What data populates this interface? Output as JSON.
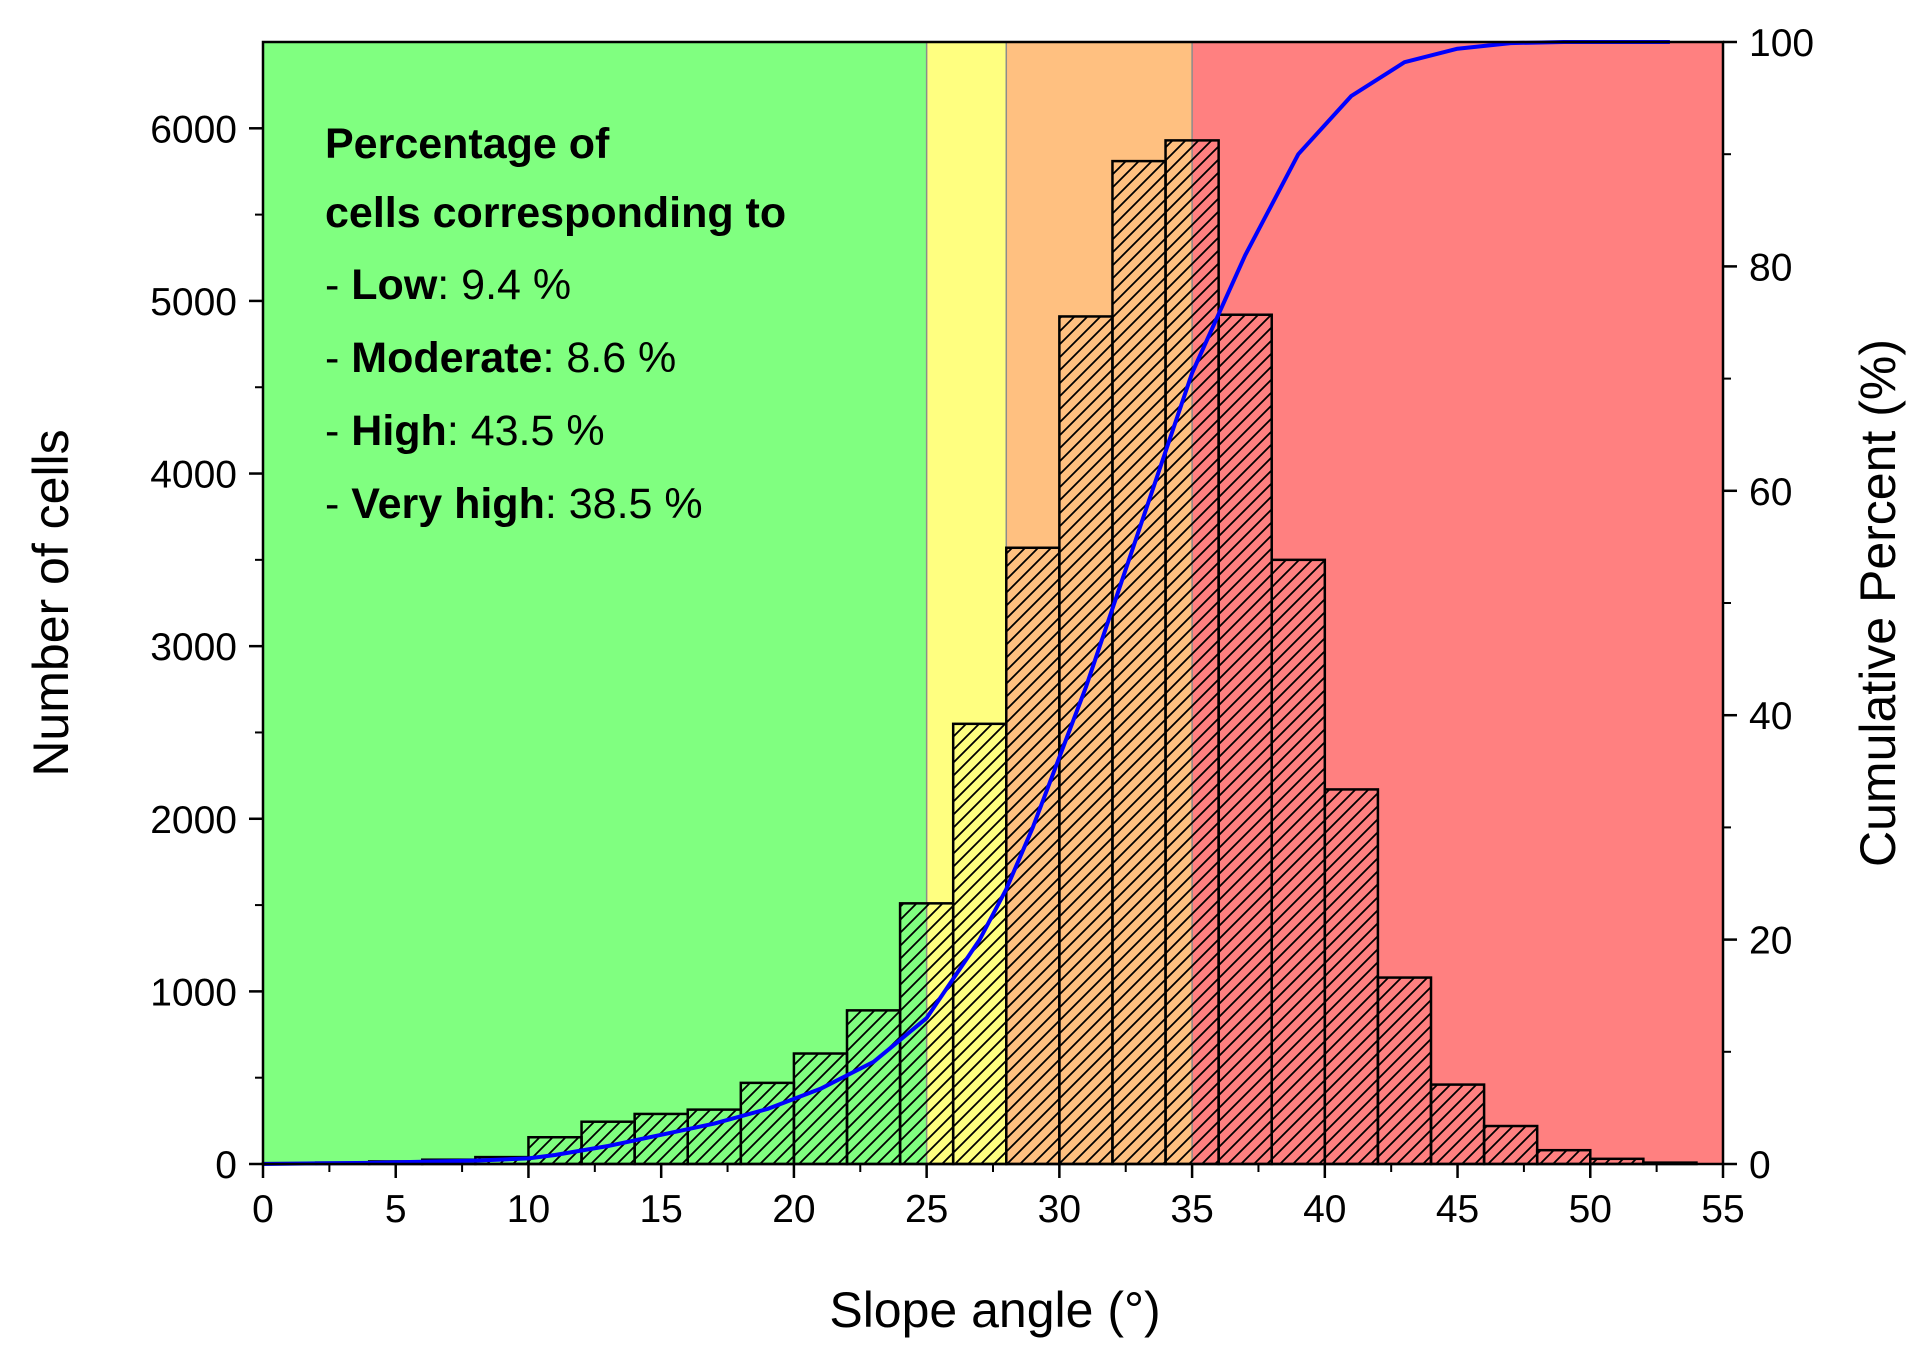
{
  "chart_data": {
    "type": "bar",
    "subtype": "histogram with cumulative percent line",
    "xlabel": "Slope angle (°)",
    "ylabel": "Number of cells",
    "y2label": "Cumulative Percent (%)",
    "xlim": [
      0,
      55
    ],
    "ylim": [
      0,
      6500
    ],
    "y2lim": [
      0,
      100
    ],
    "xticks": [
      "0",
      "5",
      "10",
      "15",
      "20",
      "25",
      "30",
      "35",
      "40",
      "45",
      "50",
      "55"
    ],
    "yticks": [
      "0",
      "1000",
      "2000",
      "3000",
      "4000",
      "5000",
      "6000"
    ],
    "y2ticks": [
      "0",
      "20",
      "40",
      "60",
      "80",
      "100"
    ],
    "grid": false,
    "zones": [
      {
        "name": "Low",
        "x_start": 0,
        "x_end": 25,
        "color": "#80ff80"
      },
      {
        "name": "Moderate",
        "x_start": 25,
        "x_end": 28,
        "color": "#ffff80"
      },
      {
        "name": "High",
        "x_start": 28,
        "x_end": 35,
        "color": "#ffc080"
      },
      {
        "name": "Very high",
        "x_start": 35,
        "x_end": 55,
        "color": "#ff8080"
      }
    ],
    "bins": [
      {
        "x_start": 0,
        "x_end": 2,
        "count": 5
      },
      {
        "x_start": 2,
        "x_end": 4,
        "count": 8
      },
      {
        "x_start": 4,
        "x_end": 6,
        "count": 15
      },
      {
        "x_start": 6,
        "x_end": 8,
        "count": 25
      },
      {
        "x_start": 8,
        "x_end": 10,
        "count": 40
      },
      {
        "x_start": 10,
        "x_end": 12,
        "count": 155
      },
      {
        "x_start": 12,
        "x_end": 14,
        "count": 245
      },
      {
        "x_start": 14,
        "x_end": 16,
        "count": 290
      },
      {
        "x_start": 16,
        "x_end": 18,
        "count": 315
      },
      {
        "x_start": 18,
        "x_end": 20,
        "count": 470
      },
      {
        "x_start": 20,
        "x_end": 22,
        "count": 640
      },
      {
        "x_start": 22,
        "x_end": 24,
        "count": 890
      },
      {
        "x_start": 24,
        "x_end": 26,
        "count": 1510
      },
      {
        "x_start": 26,
        "x_end": 28,
        "count": 2550
      },
      {
        "x_start": 28,
        "x_end": 30,
        "count": 3570
      },
      {
        "x_start": 30,
        "x_end": 32,
        "count": 4910
      },
      {
        "x_start": 32,
        "x_end": 34,
        "count": 5810
      },
      {
        "x_start": 34,
        "x_end": 36,
        "count": 5930
      },
      {
        "x_start": 36,
        "x_end": 38,
        "count": 4920
      },
      {
        "x_start": 38,
        "x_end": 40,
        "count": 3500
      },
      {
        "x_start": 40,
        "x_end": 42,
        "count": 2170
      },
      {
        "x_start": 42,
        "x_end": 44,
        "count": 1080
      },
      {
        "x_start": 44,
        "x_end": 46,
        "count": 460
      },
      {
        "x_start": 46,
        "x_end": 48,
        "count": 220
      },
      {
        "x_start": 48,
        "x_end": 50,
        "count": 80
      },
      {
        "x_start": 50,
        "x_end": 52,
        "count": 30
      },
      {
        "x_start": 52,
        "x_end": 54,
        "count": 8
      }
    ],
    "cumulative": {
      "name": "Cumulative Percent",
      "color": "#0000ff",
      "x": [
        0,
        2,
        4,
        6,
        8,
        10,
        11,
        13,
        15,
        17,
        19,
        21,
        23,
        25,
        27,
        28,
        29,
        31,
        33,
        35,
        37,
        39,
        41,
        43,
        45,
        47,
        49,
        51,
        53
      ],
      "y": [
        0,
        0.05,
        0.1,
        0.2,
        0.3,
        0.5,
        0.8,
        1.6,
        2.6,
        3.6,
        4.9,
        6.7,
        9.1,
        13.0,
        20.0,
        24.5,
        30,
        42.5,
        56.5,
        70.5,
        81,
        90,
        95.2,
        98.2,
        99.4,
        99.9,
        100,
        100,
        100
      ]
    },
    "annotation": {
      "title_line1": "Percentage of",
      "title_line2": "cells corresponding to",
      "items": [
        {
          "prefix": "- ",
          "label": "Low",
          "value": ": 9.4 %"
        },
        {
          "prefix": "- ",
          "label": "Moderate",
          "value": ": 8.6 %"
        },
        {
          "prefix": "- ",
          "label": "High",
          "value": ": 43.5 %"
        },
        {
          "prefix": "- ",
          "label": "Very high",
          "value": ": 38.5 %"
        }
      ]
    }
  }
}
